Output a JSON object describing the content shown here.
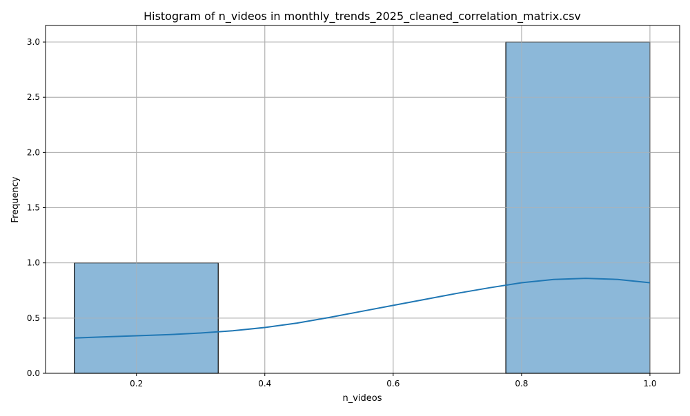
{
  "chart_data": {
    "type": "bar",
    "title": "Histogram of n_videos in monthly_trends_2025_cleaned_correlation_matrix.csv",
    "xlabel": "n_videos",
    "ylabel": "Frequency",
    "xlim": [
      0.0584,
      1.0463
    ],
    "ylim": [
      0,
      3.15
    ],
    "x_ticks": [
      0.2,
      0.4,
      0.6,
      0.8,
      1.0
    ],
    "x_tick_labels": [
      "0.2",
      "0.4",
      "0.6",
      "0.8",
      "1.0"
    ],
    "y_ticks": [
      0,
      0.5,
      1.0,
      1.5,
      2.0,
      2.5,
      3.0
    ],
    "y_tick_labels": [
      "0.0",
      "0.5",
      "1.0",
      "1.5",
      "2.0",
      "2.5",
      "3.0"
    ],
    "grid": true,
    "bins": [
      {
        "x0": 0.1033,
        "x1": 0.3274,
        "count": 1
      },
      {
        "x0": 0.3274,
        "x1": 0.5515,
        "count": 0
      },
      {
        "x0": 0.5515,
        "x1": 0.7755,
        "count": 0
      },
      {
        "x0": 0.7755,
        "x1": 1.0,
        "count": 3
      }
    ],
    "kde": {
      "x": [
        0.1033,
        0.15,
        0.2,
        0.25,
        0.3,
        0.35,
        0.4,
        0.45,
        0.5,
        0.55,
        0.6,
        0.65,
        0.7,
        0.75,
        0.8,
        0.85,
        0.9,
        0.95,
        1.0
      ],
      "y": [
        0.32,
        0.33,
        0.34,
        0.35,
        0.365,
        0.385,
        0.415,
        0.455,
        0.505,
        0.56,
        0.615,
        0.67,
        0.725,
        0.775,
        0.82,
        0.85,
        0.86,
        0.85,
        0.82
      ]
    },
    "colors": {
      "bar_fill": "#8cb8d9",
      "bar_edge": "#000000",
      "kde_line": "#1f77b4",
      "grid": "#b0b0b0"
    }
  }
}
